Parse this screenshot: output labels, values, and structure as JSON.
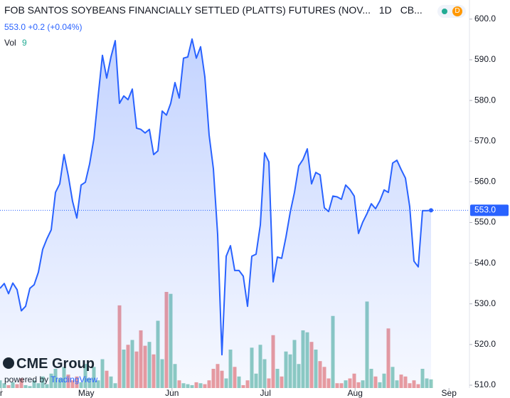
{
  "chart_data": {
    "type": "area",
    "title": "FOB SANTOS SOYBEANS FINANCIALLY SETTLED (PLATTS) FUTURES (NOV...",
    "interval": "1D",
    "exchange": "CB...",
    "last_price": "553.0",
    "change": "+0.2",
    "change_pct": "(+0.04%)",
    "volume_label": "Vol",
    "logo": "CME Group",
    "powered_by": "powered by",
    "powered_brand": "TradingView",
    "color": "#2962ff",
    "up_color": "#8fcdc0",
    "down_color": "#ee9c9c",
    "values": [
      533.8,
      535.0,
      532.5,
      535.1,
      533.5,
      528.3,
      529.4,
      533.8,
      534.7,
      537.8,
      543.4,
      546.0,
      548.2,
      557.4,
      559.5,
      566.7,
      561.5,
      555.2,
      551.1,
      559.2,
      559.9,
      564.4,
      570.6,
      581.1,
      591.1,
      585.5,
      590.7,
      594.7,
      579.3,
      581.1,
      580.2,
      582.8,
      573.2,
      572.9,
      572.0,
      572.9,
      566.7,
      567.6,
      577.4,
      576.4,
      579.3,
      584.4,
      580.6,
      590.4,
      590.7,
      595.1,
      590.4,
      593.2,
      585.8,
      571.5,
      563.2,
      547.0,
      517.5,
      541.7,
      544.3,
      538.2,
      538.2,
      536.8,
      529.4,
      541.7,
      542.2,
      549.4,
      567.1,
      564.9,
      535.4,
      541.5,
      541.2,
      546.4,
      552.5,
      557.4,
      563.9,
      565.5,
      568.1,
      559.5,
      562.3,
      561.7,
      553.6,
      552.7,
      556.5,
      556.3,
      555.7,
      559.2,
      558.1,
      556.5,
      547.3,
      550.1,
      552.2,
      554.6,
      553.4,
      555.3,
      558.0,
      557.4,
      564.6,
      565.3,
      563.0,
      560.9,
      553.9,
      540.5,
      539.1,
      552.9,
      552.9,
      553.0
    ],
    "volume": [
      8,
      5,
      3,
      6,
      4,
      10,
      3,
      2,
      8,
      5,
      12,
      4,
      15,
      20,
      10,
      22,
      14,
      8,
      12,
      6,
      25,
      10,
      22,
      8,
      30,
      18,
      12,
      5,
      86,
      40,
      45,
      50,
      38,
      60,
      44,
      48,
      35,
      70,
      30,
      100,
      98,
      25,
      8,
      5,
      4,
      3,
      6,
      5,
      4,
      8,
      20,
      25,
      18,
      10,
      40,
      22,
      12,
      3,
      8,
      42,
      15,
      45,
      30,
      10,
      55,
      20,
      12,
      38,
      35,
      50,
      25,
      60,
      58,
      48,
      40,
      28,
      22,
      10,
      75,
      5,
      5,
      8,
      10,
      15,
      6,
      8,
      90,
      20,
      12,
      6,
      15,
      62,
      22,
      8,
      14,
      12,
      5,
      8,
      4,
      20,
      10,
      9
    ],
    "xlim": [
      0,
      110
    ],
    "xticks": [
      {
        "value": 0.3,
        "label": "r"
      },
      {
        "value": 20.2,
        "label": "May"
      },
      {
        "value": 40.3,
        "label": "Jun"
      },
      {
        "value": 62.2,
        "label": "Jul"
      },
      {
        "value": 83.2,
        "label": "Aug"
      },
      {
        "value": 105.2,
        "label": "Sep"
      }
    ],
    "ylim": [
      509.3,
      604.7
    ],
    "yticks": [
      {
        "value": 510,
        "label": "510.0"
      },
      {
        "value": 520,
        "label": "520.0"
      },
      {
        "value": 530,
        "label": "530.0"
      },
      {
        "value": 540,
        "label": "540.0"
      },
      {
        "value": 550,
        "label": "550.0"
      },
      {
        "value": 560,
        "label": "560.0"
      },
      {
        "value": 570,
        "label": "570.0"
      },
      {
        "value": 580,
        "label": "580.0"
      },
      {
        "value": 590,
        "label": "590.0"
      },
      {
        "value": 600,
        "label": "600.0"
      }
    ]
  }
}
